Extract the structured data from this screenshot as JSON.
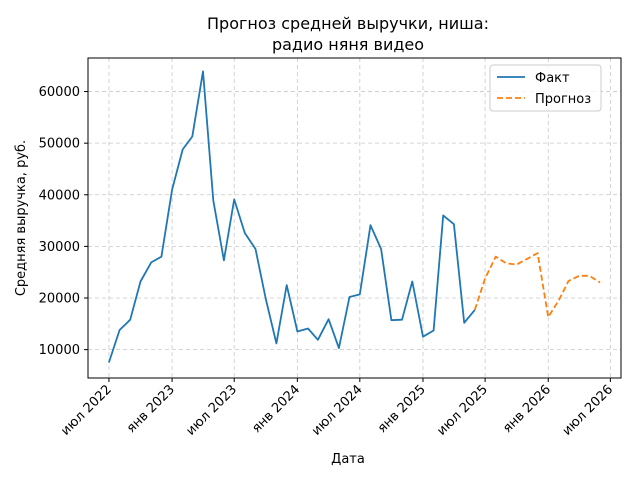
{
  "chart_data": {
    "type": "line",
    "title": "Прогноз средней выручки, ниша:\nрадио няня видео",
    "title_lines": [
      "Прогноз средней выручки, ниша:",
      "радио няня видео"
    ],
    "xlabel": "Дата",
    "ylabel": "Средняя выручка, руб.",
    "x_tick_labels": [
      "июл 2022",
      "янв 2023",
      "июл 2023",
      "янв 2024",
      "июл 2024",
      "янв 2025",
      "июл 2025",
      "янв 2026",
      "июл 2026"
    ],
    "x_tick_dates": [
      "2022-07-01",
      "2023-01-01",
      "2023-07-01",
      "2024-01-01",
      "2024-07-01",
      "2025-01-01",
      "2025-07-01",
      "2026-01-01",
      "2026-07-01"
    ],
    "y_ticks": [
      10000,
      20000,
      30000,
      40000,
      50000,
      60000
    ],
    "y_tick_labels": [
      "10000",
      "20000",
      "30000",
      "40000",
      "50000",
      "60000"
    ],
    "xlim": [
      "2022-05-01",
      "2026-08-01"
    ],
    "ylim": [
      4500,
      66500
    ],
    "grid": true,
    "legend_position": "top-right",
    "series": [
      {
        "name": "Факт",
        "color": "#1f77b4",
        "style": "solid",
        "points": [
          [
            "2022-07-01",
            7500
          ],
          [
            "2022-08-01",
            13800
          ],
          [
            "2022-09-01",
            15800
          ],
          [
            "2022-10-01",
            23200
          ],
          [
            "2022-11-01",
            26900
          ],
          [
            "2022-12-01",
            28000
          ],
          [
            "2023-01-01",
            41000
          ],
          [
            "2023-02-01",
            48800
          ],
          [
            "2023-03-01",
            51300
          ],
          [
            "2023-04-01",
            63900
          ],
          [
            "2023-05-01",
            38900
          ],
          [
            "2023-06-01",
            27300
          ],
          [
            "2023-07-01",
            39100
          ],
          [
            "2023-08-01",
            32600
          ],
          [
            "2023-09-01",
            29500
          ],
          [
            "2023-10-01",
            19800
          ],
          [
            "2023-11-01",
            11200
          ],
          [
            "2023-12-01",
            22500
          ],
          [
            "2024-01-01",
            13500
          ],
          [
            "2024-02-01",
            14100
          ],
          [
            "2024-03-01",
            11900
          ],
          [
            "2024-04-01",
            15900
          ],
          [
            "2024-05-01",
            10300
          ],
          [
            "2024-06-01",
            20200
          ],
          [
            "2024-07-01",
            20700
          ],
          [
            "2024-08-01",
            34100
          ],
          [
            "2024-09-01",
            29500
          ],
          [
            "2024-10-01",
            15700
          ],
          [
            "2024-11-01",
            15800
          ],
          [
            "2024-12-01",
            23200
          ],
          [
            "2025-01-01",
            12500
          ],
          [
            "2025-02-01",
            13700
          ],
          [
            "2025-03-01",
            36000
          ],
          [
            "2025-04-01",
            34300
          ],
          [
            "2025-05-01",
            15200
          ],
          [
            "2025-06-01",
            17700
          ]
        ]
      },
      {
        "name": "Прогноз",
        "color": "#ff7f0e",
        "style": "dashed",
        "points": [
          [
            "2025-06-01",
            17700
          ],
          [
            "2025-07-01",
            23800
          ],
          [
            "2025-08-01",
            28000
          ],
          [
            "2025-09-01",
            26700
          ],
          [
            "2025-10-01",
            26500
          ],
          [
            "2025-11-01",
            27600
          ],
          [
            "2025-12-01",
            28700
          ],
          [
            "2026-01-01",
            16300
          ],
          [
            "2026-02-01",
            19600
          ],
          [
            "2026-03-01",
            23300
          ],
          [
            "2026-04-01",
            24300
          ],
          [
            "2026-05-01",
            24300
          ],
          [
            "2026-06-01",
            23000
          ]
        ]
      }
    ]
  }
}
